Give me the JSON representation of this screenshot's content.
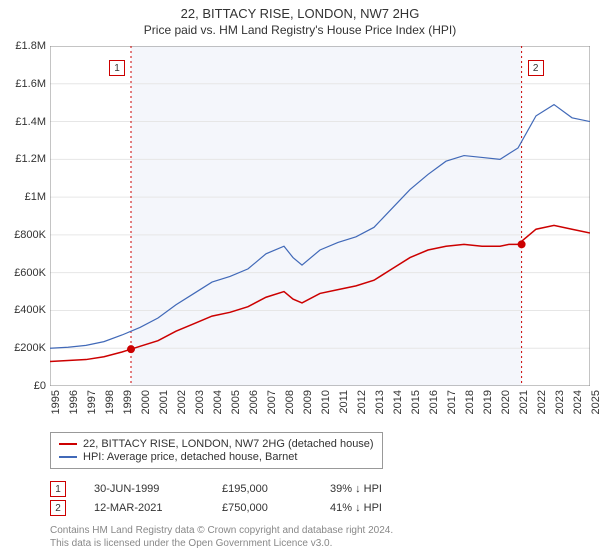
{
  "title": "22, BITTACY RISE, LONDON, NW7 2HG",
  "subtitle": "Price paid vs. HM Land Registry's House Price Index (HPI)",
  "chart": {
    "type": "line",
    "background_color": "#ffffff",
    "plot_band_color": "#f4f6fb",
    "grid_color": "#e6e6e6",
    "axis_color": "#888888",
    "label_fontsize": 11,
    "ylim": [
      0,
      1800000
    ],
    "ytick_step": 200000,
    "y_ticks": [
      "£0",
      "£200K",
      "£400K",
      "£600K",
      "£800K",
      "£1M",
      "£1.2M",
      "£1.4M",
      "£1.6M",
      "£1.8M"
    ],
    "xlim": [
      1995,
      2025
    ],
    "x_ticks": [
      "1995",
      "1996",
      "1997",
      "1998",
      "1999",
      "2000",
      "2001",
      "2002",
      "2003",
      "2004",
      "2005",
      "2006",
      "2007",
      "2008",
      "2009",
      "2010",
      "2011",
      "2012",
      "2013",
      "2014",
      "2015",
      "2016",
      "2017",
      "2018",
      "2019",
      "2020",
      "2021",
      "2022",
      "2023",
      "2024",
      "2025"
    ],
    "series": [
      {
        "name": "price_paid",
        "color": "#cc0000",
        "line_width": 1.5,
        "data": [
          [
            1995,
            130000
          ],
          [
            1996,
            135000
          ],
          [
            1997,
            140000
          ],
          [
            1998,
            155000
          ],
          [
            1999,
            180000
          ],
          [
            1999.5,
            195000
          ],
          [
            2000,
            210000
          ],
          [
            2001,
            240000
          ],
          [
            2002,
            290000
          ],
          [
            2003,
            330000
          ],
          [
            2004,
            370000
          ],
          [
            2005,
            390000
          ],
          [
            2006,
            420000
          ],
          [
            2007,
            470000
          ],
          [
            2008,
            500000
          ],
          [
            2008.5,
            460000
          ],
          [
            2009,
            440000
          ],
          [
            2010,
            490000
          ],
          [
            2011,
            510000
          ],
          [
            2012,
            530000
          ],
          [
            2013,
            560000
          ],
          [
            2014,
            620000
          ],
          [
            2015,
            680000
          ],
          [
            2016,
            720000
          ],
          [
            2017,
            740000
          ],
          [
            2018,
            750000
          ],
          [
            2019,
            740000
          ],
          [
            2020,
            740000
          ],
          [
            2020.5,
            750000
          ],
          [
            2021,
            750000
          ],
          [
            2022,
            830000
          ],
          [
            2023,
            850000
          ],
          [
            2024,
            830000
          ],
          [
            2025,
            810000
          ]
        ]
      },
      {
        "name": "hpi",
        "color": "#4169b8",
        "line_width": 1.2,
        "data": [
          [
            1995,
            200000
          ],
          [
            1996,
            205000
          ],
          [
            1997,
            215000
          ],
          [
            1998,
            235000
          ],
          [
            1999,
            270000
          ],
          [
            2000,
            310000
          ],
          [
            2001,
            360000
          ],
          [
            2002,
            430000
          ],
          [
            2003,
            490000
          ],
          [
            2004,
            550000
          ],
          [
            2005,
            580000
          ],
          [
            2006,
            620000
          ],
          [
            2007,
            700000
          ],
          [
            2008,
            740000
          ],
          [
            2008.5,
            680000
          ],
          [
            2009,
            640000
          ],
          [
            2010,
            720000
          ],
          [
            2011,
            760000
          ],
          [
            2012,
            790000
          ],
          [
            2013,
            840000
          ],
          [
            2014,
            940000
          ],
          [
            2015,
            1040000
          ],
          [
            2016,
            1120000
          ],
          [
            2017,
            1190000
          ],
          [
            2018,
            1220000
          ],
          [
            2019,
            1210000
          ],
          [
            2020,
            1200000
          ],
          [
            2020.5,
            1230000
          ],
          [
            2021,
            1260000
          ],
          [
            2022,
            1430000
          ],
          [
            2023,
            1490000
          ],
          [
            2024,
            1420000
          ],
          [
            2025,
            1400000
          ]
        ]
      }
    ],
    "events": [
      {
        "id": "1",
        "year": 1999.5,
        "value": 195000,
        "marker_color": "#cc0000"
      },
      {
        "id": "2",
        "year": 2021.2,
        "value": 750000,
        "marker_color": "#cc0000"
      }
    ],
    "plot_band": {
      "from": 1999.5,
      "to": 2021.2
    }
  },
  "legend": {
    "items": [
      {
        "color": "#cc0000",
        "label": "22, BITTACY RISE, LONDON, NW7 2HG (detached house)"
      },
      {
        "color": "#4169b8",
        "label": "HPI: Average price, detached house, Barnet"
      }
    ]
  },
  "transactions": [
    {
      "id": "1",
      "date": "30-JUN-1999",
      "price": "£195,000",
      "hpi_diff": "39% ↓ HPI",
      "border_color": "#cc0000"
    },
    {
      "id": "2",
      "date": "12-MAR-2021",
      "price": "£750,000",
      "hpi_diff": "41% ↓ HPI",
      "border_color": "#cc0000"
    }
  ],
  "footer": {
    "line1": "Contains HM Land Registry data © Crown copyright and database right 2024.",
    "line2": "This data is licensed under the Open Government Licence v3.0."
  }
}
